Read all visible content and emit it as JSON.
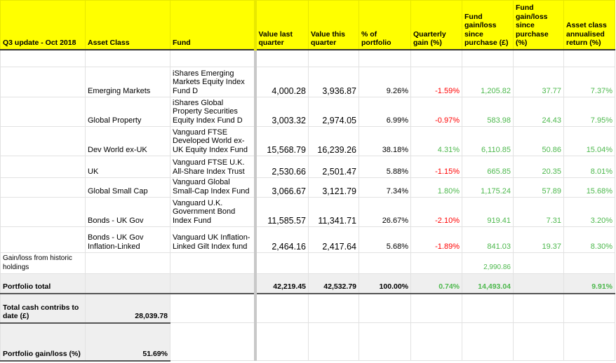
{
  "header": [
    "Q3 update - Oct 2018",
    "Asset Class",
    "Fund",
    "Value last quarter",
    "Value this quarter",
    "% of portfolio",
    "Quarterly gain (%)",
    "Fund gain/loss since purchase (£)",
    "Fund gain/loss since purchase (%)",
    "Asset class annualised return (%)"
  ],
  "rows": [
    {
      "asset": "Emerging Markets",
      "fund": "iShares Emerging Markets Equity Index Fund D",
      "last": "4,000.28",
      "this": "3,936.87",
      "pct": "9.26%",
      "qgain": "-1.59%",
      "gain_gbp": "1,205.82",
      "gain_pct": "37.77",
      "annual": "7.37%"
    },
    {
      "asset": "Global Property",
      "fund": "iShares Global Property Securities Equity Index Fund D",
      "last": "3,003.32",
      "this": "2,974.05",
      "pct": "6.99%",
      "qgain": "-0.97%",
      "gain_gbp": "583.98",
      "gain_pct": "24.43",
      "annual": "7.95%"
    },
    {
      "asset": "Dev World ex-UK",
      "fund": "Vanguard FTSE Developed World ex-UK Equity Index Fund",
      "last": "15,568.79",
      "this": "16,239.26",
      "pct": "38.18%",
      "qgain": "4.31%",
      "gain_gbp": "6,110.85",
      "gain_pct": "50.86",
      "annual": "15.04%"
    },
    {
      "asset": "UK",
      "fund": "Vanguard FTSE U.K. All-Share Index Trust",
      "last": "2,530.66",
      "this": "2,501.47",
      "pct": "5.88%",
      "qgain": "-1.15%",
      "gain_gbp": "665.85",
      "gain_pct": "20.35",
      "annual": "8.01%"
    },
    {
      "asset": "Global Small Cap",
      "fund": "Vanguard Global Small-Cap Index Fund",
      "last": "3,066.67",
      "this": "3,121.79",
      "pct": "7.34%",
      "qgain": "1.80%",
      "gain_gbp": "1,175.24",
      "gain_pct": "57.89",
      "annual": "15.68%"
    },
    {
      "asset": "Bonds - UK Gov",
      "fund": "Vanguard U.K. Government Bond Index Fund",
      "last": "11,585.57",
      "this": "11,341.71",
      "pct": "26.67%",
      "qgain": "-2.10%",
      "gain_gbp": "919.41",
      "gain_pct": "7.31",
      "annual": "3.20%"
    },
    {
      "asset": "Bonds - UK Gov Inflation-Linked",
      "fund": "Vanguard UK Inflation-Linked Gilt Index fund",
      "last": "2,464.16",
      "this": "2,417.64",
      "pct": "5.68%",
      "qgain": "-1.89%",
      "gain_gbp": "841.03",
      "gain_pct": "19.37",
      "annual": "8.30%"
    }
  ],
  "historic": {
    "label": "Gain/loss from historic holdings",
    "gain_gbp": "2,990.86"
  },
  "total": {
    "label": "Portfolio total",
    "last": "42,219.45",
    "this": "42,532.79",
    "pct": "100.00%",
    "qgain": "0.74%",
    "gain_gbp": "14,493.04",
    "annual": "9.91%"
  },
  "cash": {
    "label": "Total cash contribs to date (£)",
    "value": "28,039.78"
  },
  "portfolio_gain": {
    "label": "Portfolio gain/loss (%)",
    "value": "51.69%"
  },
  "colors": {
    "header_bg": "#ffff00",
    "negative": "#ff0000",
    "positive": "#4db84d"
  }
}
